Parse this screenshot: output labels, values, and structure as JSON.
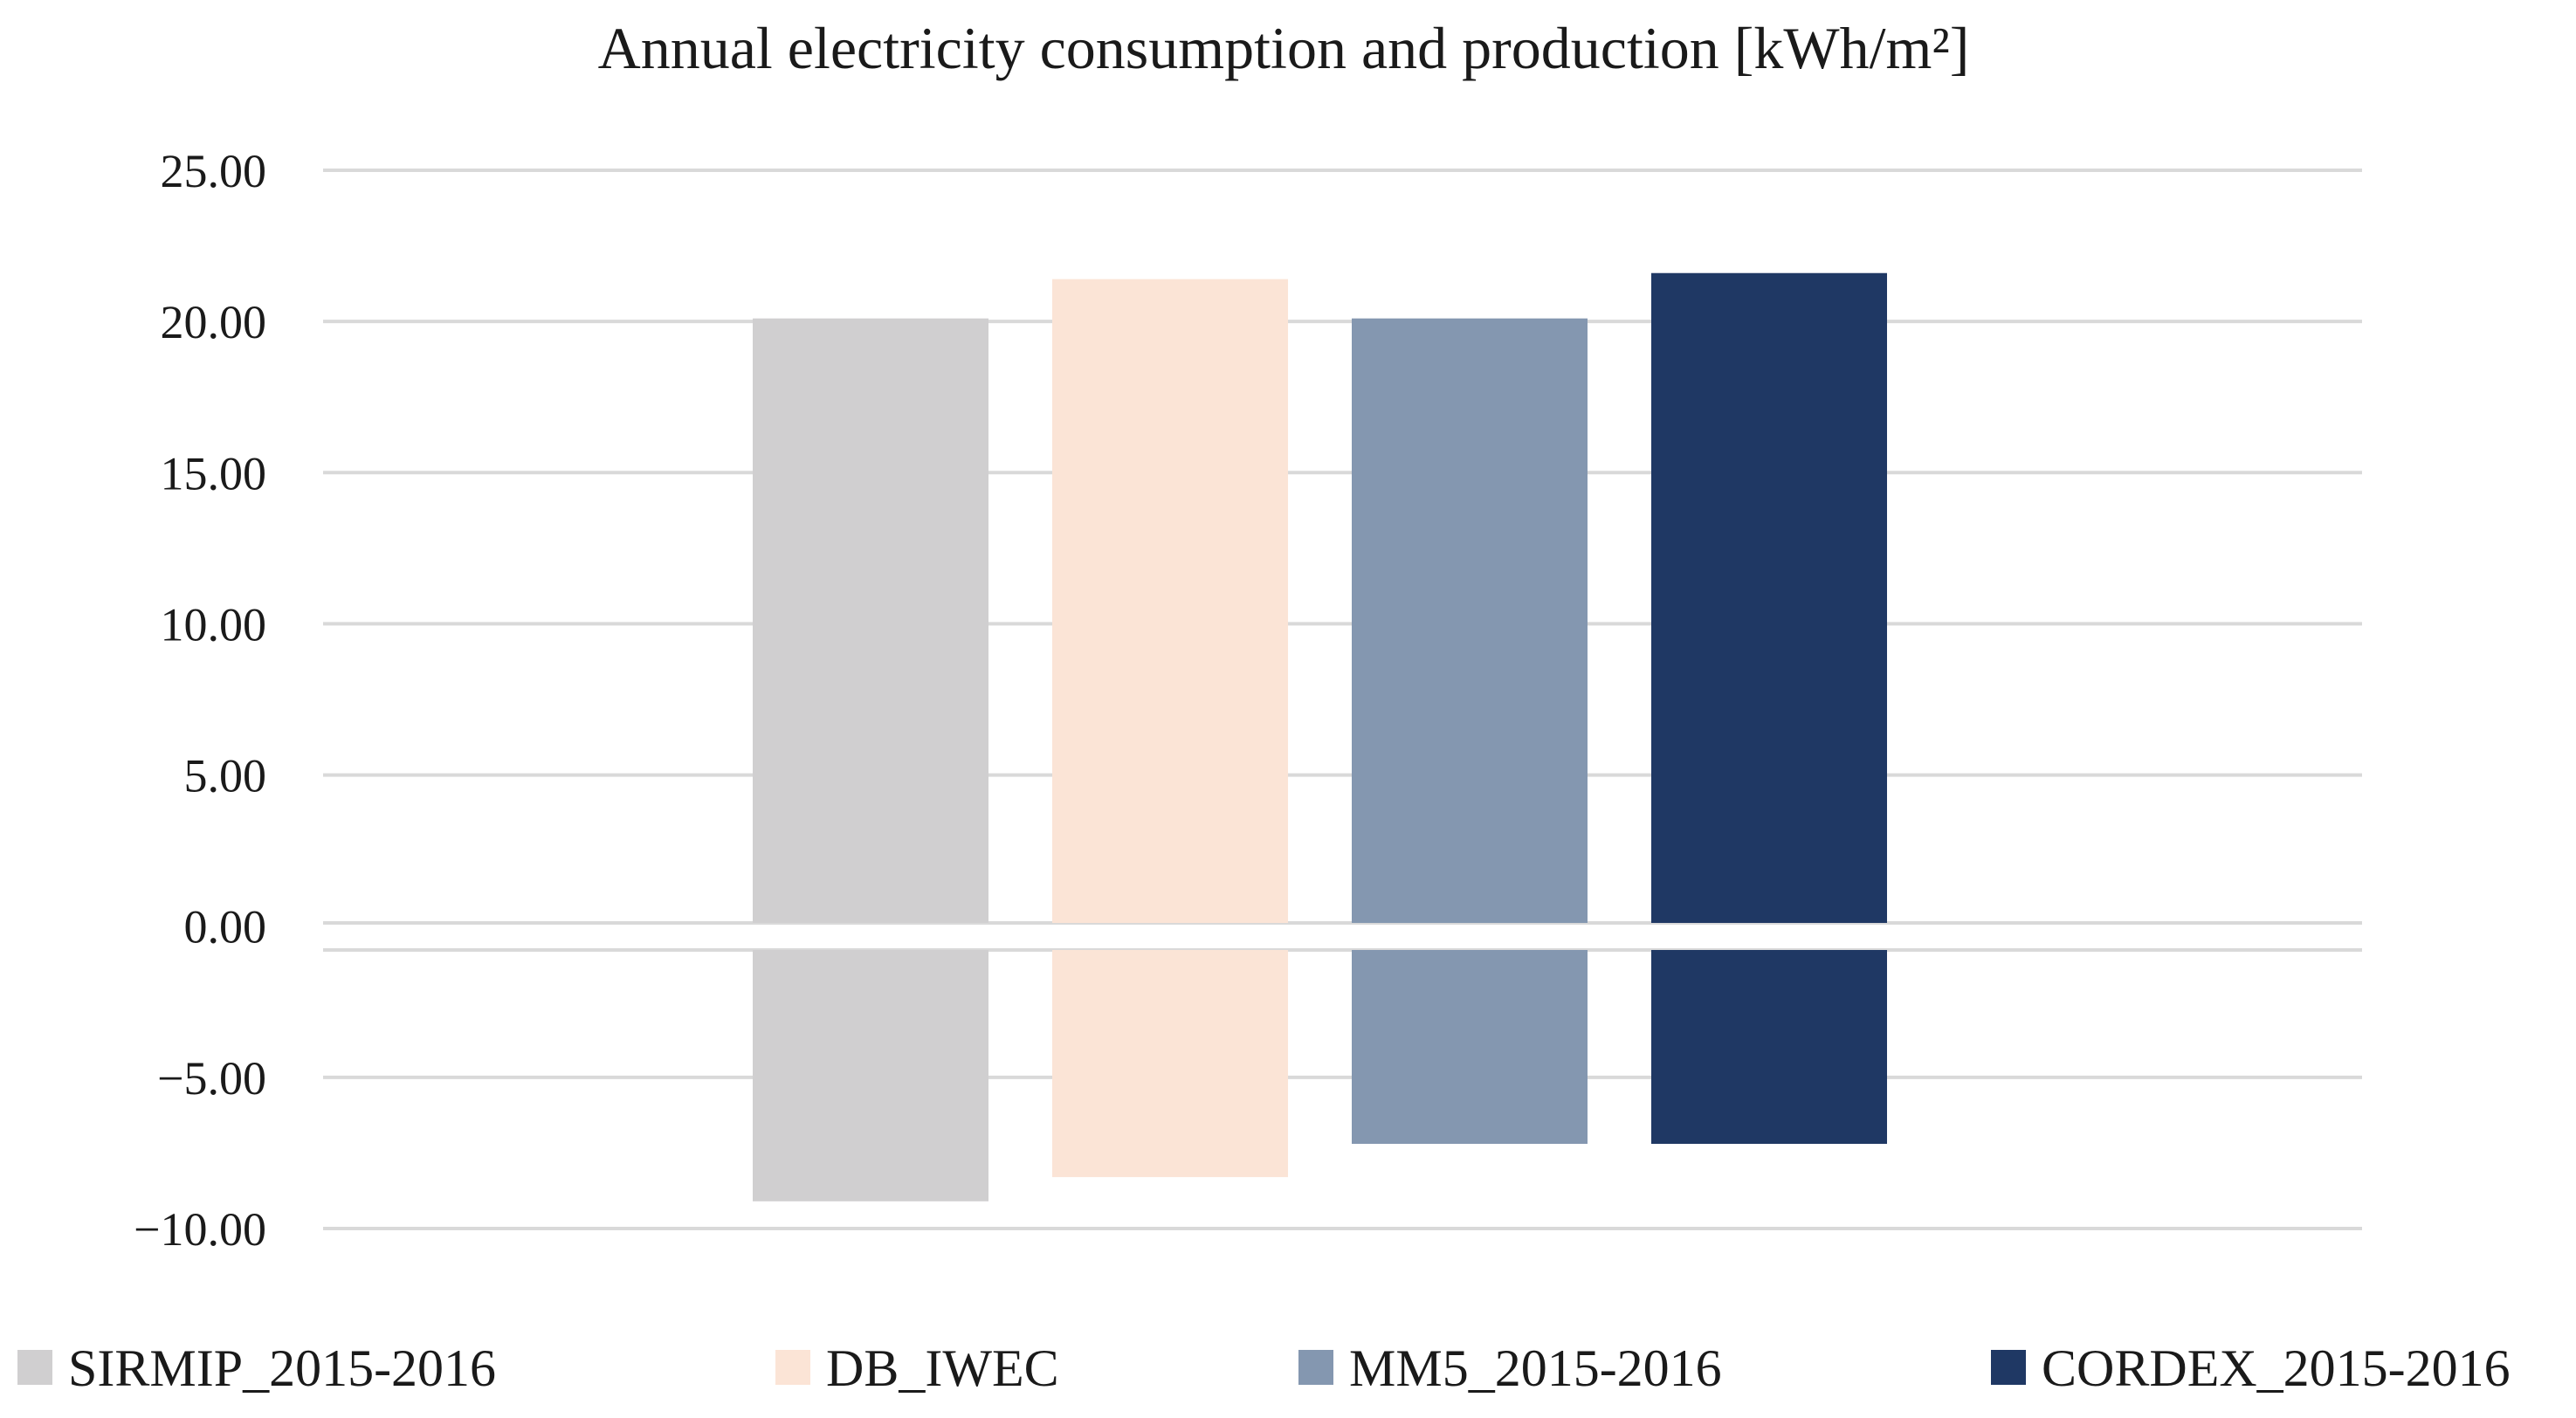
{
  "chart_data": {
    "type": "bar",
    "title": "Annual electricity consumption and production  [kWh/m²]",
    "xlabel": "",
    "ylabel": "",
    "ylim": [
      -10,
      25
    ],
    "yticks": [
      25,
      20,
      15,
      10,
      5,
      0,
      -5,
      -10
    ],
    "ytick_labels": [
      "25.00",
      "20.00",
      "15.00",
      "10.00",
      "5.00",
      "0.00",
      "−5.00",
      "−10.00"
    ],
    "grid": true,
    "legend_position": "bottom",
    "series": [
      {
        "name": "SIRMIP_2015-2016",
        "color": "#d0cfd0",
        "consumption": 20.1,
        "production": -9.1
      },
      {
        "name": "DB_IWEC",
        "color": "#fbe4d6",
        "consumption": 21.4,
        "production": -8.3
      },
      {
        "name": "MM5_2015-2016",
        "color": "#8497b0",
        "consumption": 20.1,
        "production": -7.2
      },
      {
        "name": "CORDEX_2015-2016",
        "color": "#1f3864",
        "consumption": 21.6,
        "production": -7.2
      }
    ]
  }
}
